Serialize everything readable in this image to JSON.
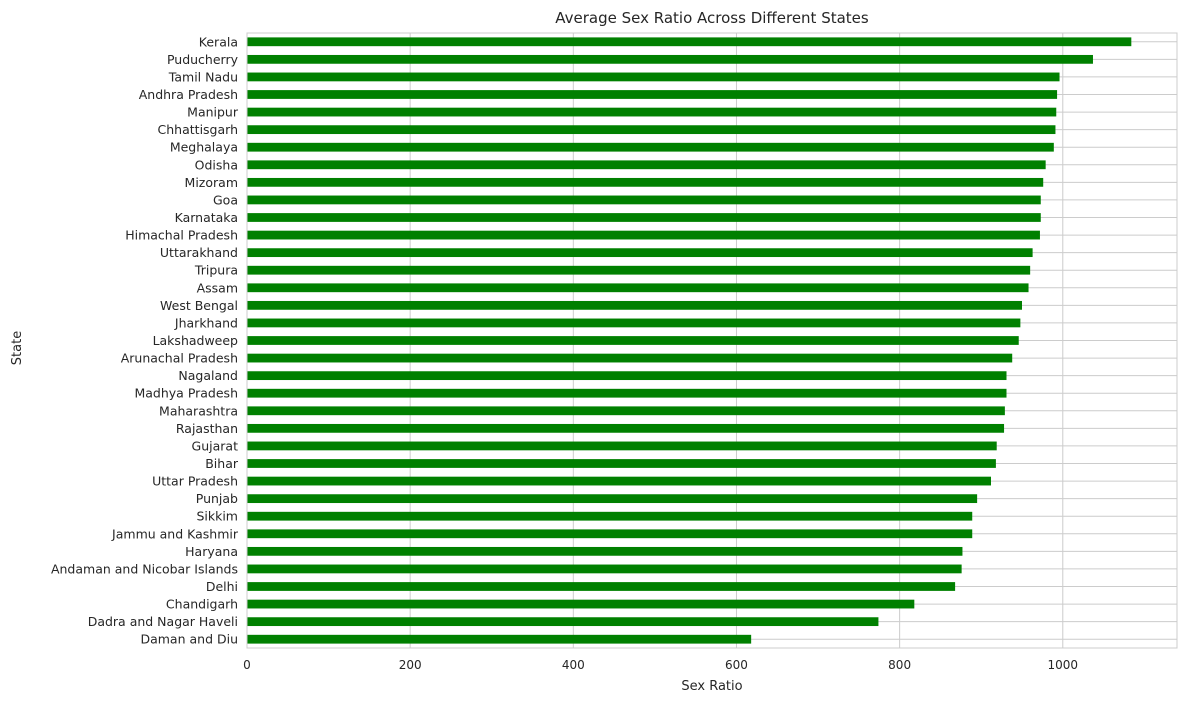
{
  "chart_data": {
    "type": "bar",
    "orientation": "horizontal",
    "title": "Average Sex Ratio Across Different States",
    "xlabel": "Sex Ratio",
    "ylabel": "State",
    "xlim": [
      0,
      1140
    ],
    "xticks": [
      0,
      200,
      400,
      600,
      800,
      1000
    ],
    "grid": true,
    "bar_color": "#008000",
    "categories": [
      "Kerala",
      "Puducherry",
      "Tamil Nadu",
      "Andhra Pradesh",
      "Manipur",
      "Chhattisgarh",
      "Meghalaya",
      "Odisha",
      "Mizoram",
      "Goa",
      "Karnataka",
      "Himachal Pradesh",
      "Uttarakhand",
      "Tripura",
      "Assam",
      "West Bengal",
      "Jharkhand",
      "Lakshadweep",
      "Arunachal Pradesh",
      "Nagaland",
      "Madhya Pradesh",
      "Maharashtra",
      "Rajasthan",
      "Gujarat",
      "Bihar",
      "Uttar Pradesh",
      "Punjab",
      "Sikkim",
      "Jammu and Kashmir",
      "Haryana",
      "Andaman and Nicobar Islands",
      "Delhi",
      "Chandigarh",
      "Dadra and Nagar Haveli",
      "Daman and Diu"
    ],
    "values": [
      1084,
      1037,
      996,
      993,
      992,
      991,
      989,
      979,
      976,
      973,
      973,
      972,
      963,
      960,
      958,
      950,
      948,
      946,
      938,
      931,
      931,
      929,
      928,
      919,
      918,
      912,
      895,
      889,
      889,
      877,
      876,
      868,
      818,
      774,
      618
    ]
  }
}
